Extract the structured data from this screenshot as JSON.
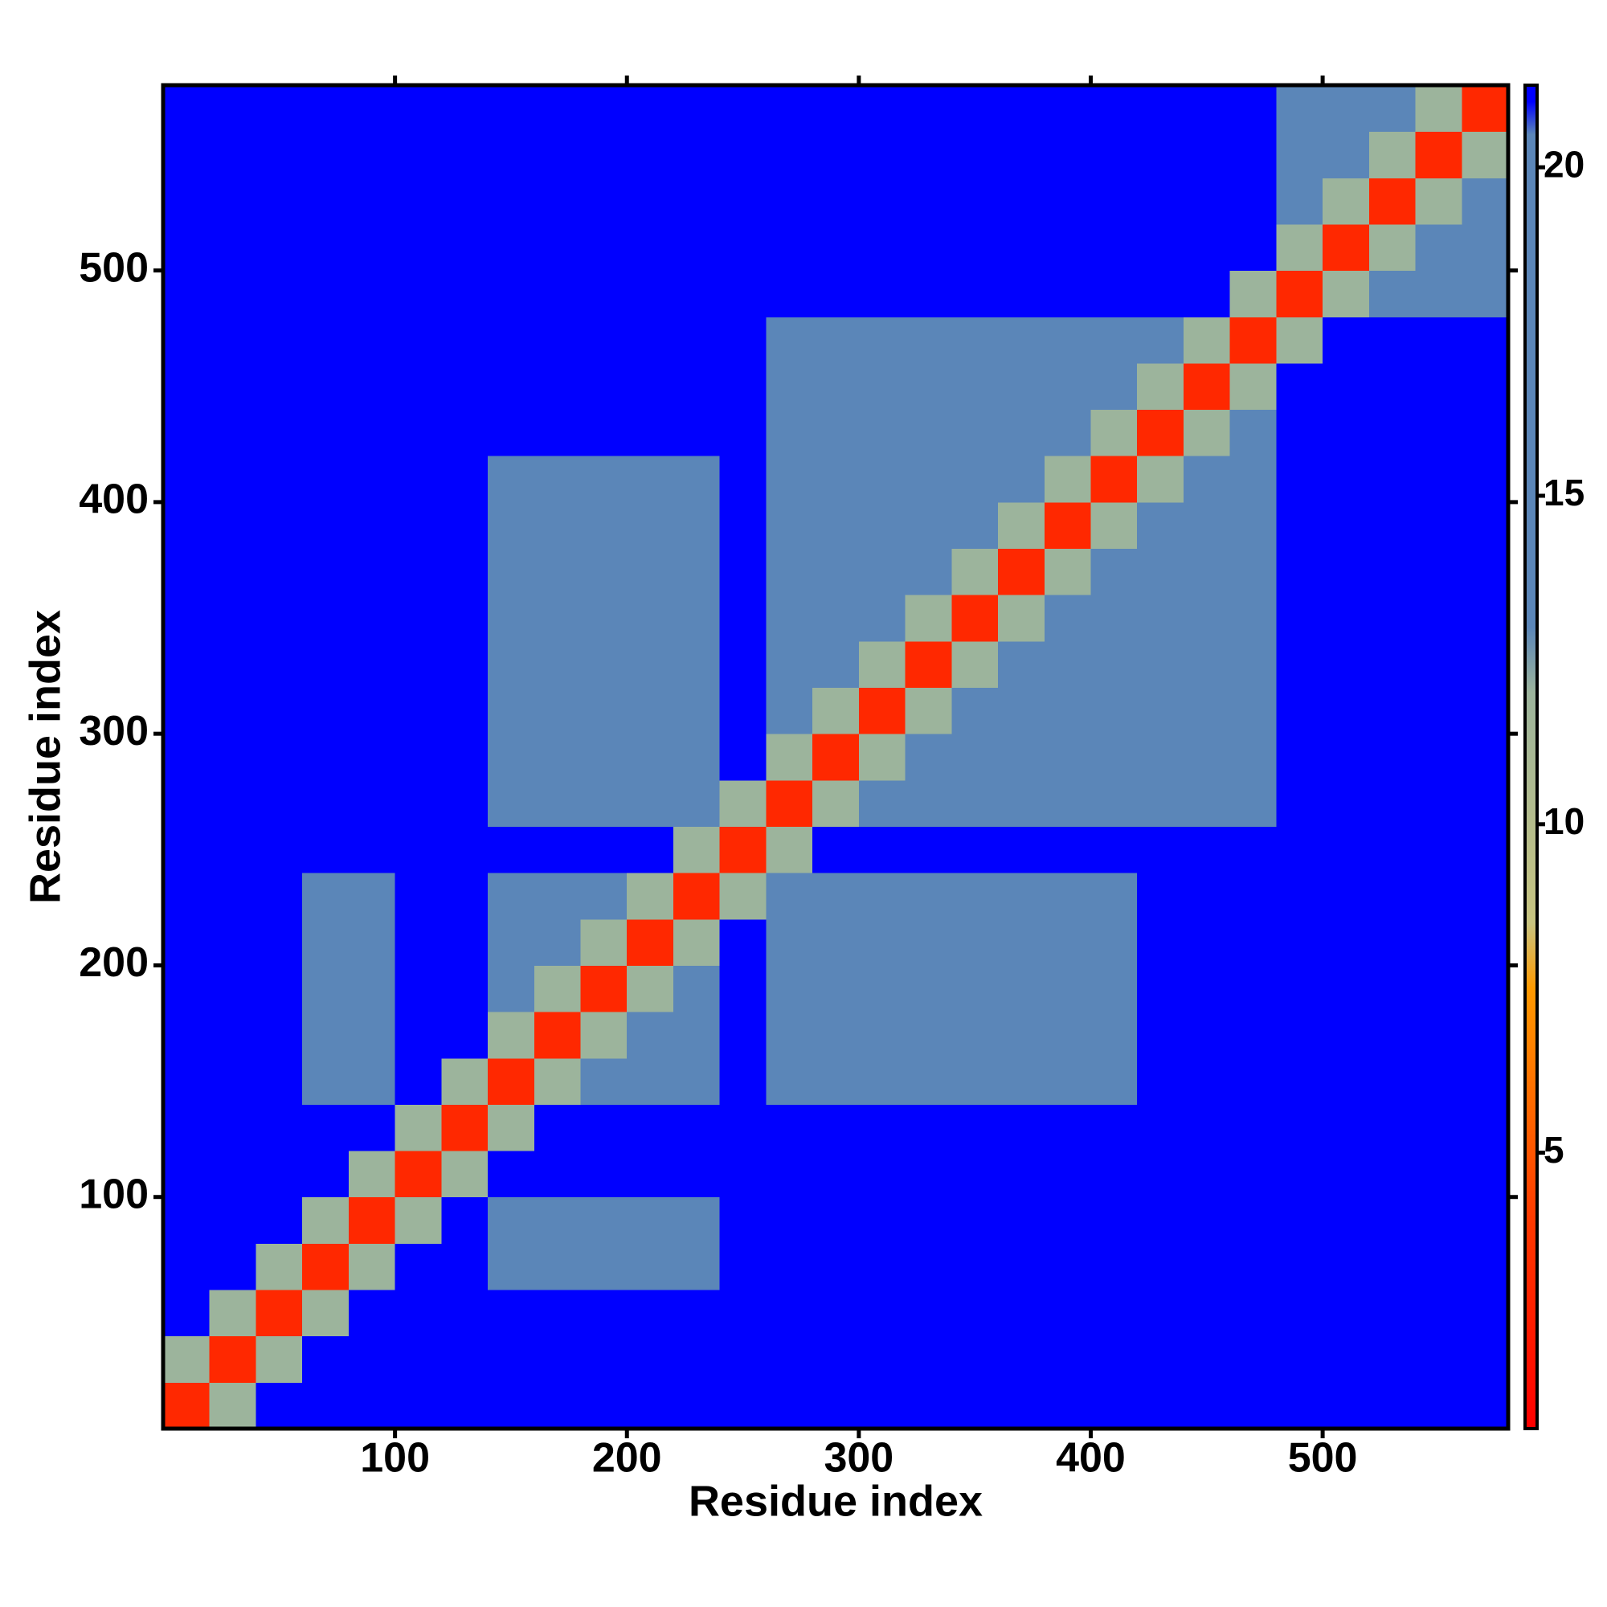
{
  "chart_data": {
    "type": "heatmap",
    "x_label": "Residue index",
    "y_label": "Residue index",
    "x_bins": [
      0,
      20,
      40,
      60,
      80,
      100,
      120,
      140,
      160,
      180,
      200,
      220,
      240,
      260,
      280,
      300,
      320,
      340,
      360,
      380,
      400,
      420,
      440,
      460,
      480,
      500,
      520,
      540,
      560,
      580
    ],
    "y_bins": [
      0,
      20,
      40,
      60,
      80,
      100,
      120,
      140,
      160,
      180,
      200,
      220,
      240,
      260,
      280,
      300,
      320,
      340,
      360,
      380,
      400,
      420,
      440,
      460,
      480,
      500,
      520,
      540,
      560,
      580
    ],
    "xlim": [
      0,
      580
    ],
    "ylim": [
      0,
      580
    ],
    "xticks": [
      100,
      200,
      300,
      400,
      500
    ],
    "yticks": [
      100,
      200,
      300,
      400,
      500
    ],
    "colorbar_lim": [
      0.8,
      21.25
    ],
    "colorbar_ticks": [
      5,
      10,
      15,
      20
    ],
    "colorscale": [
      {
        "value": 0.8,
        "color": "#ff0000"
      },
      {
        "value": 4,
        "color": "#ff3a00"
      },
      {
        "value": 7.5,
        "color": "#ff9a00"
      },
      {
        "value": 8.5,
        "color": "#c8c480"
      },
      {
        "value": 12,
        "color": "#9cb49c"
      },
      {
        "value": 13,
        "color": "#5b86b8"
      },
      {
        "value": 20.5,
        "color": "#5b86b8"
      },
      {
        "value": 21,
        "color": "#0000ff"
      },
      {
        "value": 21.25,
        "color": "#0000ff"
      }
    ],
    "values": [
      [
        3,
        12,
        21,
        21,
        21,
        21,
        21,
        21,
        21,
        21,
        21,
        21,
        21,
        21,
        21,
        21,
        21,
        21,
        21,
        21,
        21,
        21,
        21,
        21,
        21,
        21,
        21,
        21,
        21
      ],
      [
        12,
        3,
        12,
        21,
        21,
        21,
        21,
        21,
        21,
        21,
        21,
        21,
        21,
        21,
        21,
        21,
        21,
        21,
        21,
        21,
        21,
        21,
        21,
        21,
        21,
        21,
        21,
        21,
        21
      ],
      [
        21,
        12,
        3,
        12,
        21,
        21,
        21,
        21,
        21,
        21,
        21,
        21,
        21,
        21,
        21,
        21,
        21,
        21,
        21,
        21,
        21,
        21,
        21,
        21,
        21,
        21,
        21,
        21,
        21
      ],
      [
        21,
        21,
        12,
        3,
        12,
        21,
        21,
        17,
        17,
        17,
        17,
        17,
        21,
        21,
        21,
        21,
        21,
        21,
        21,
        21,
        21,
        21,
        21,
        21,
        21,
        21,
        21,
        21,
        21
      ],
      [
        21,
        21,
        21,
        12,
        3,
        12,
        21,
        17,
        17,
        17,
        17,
        17,
        21,
        21,
        21,
        21,
        21,
        21,
        21,
        21,
        21,
        21,
        21,
        21,
        21,
        21,
        21,
        21,
        21
      ],
      [
        21,
        21,
        21,
        21,
        12,
        3,
        12,
        21,
        21,
        21,
        21,
        21,
        21,
        21,
        21,
        21,
        21,
        21,
        21,
        21,
        21,
        21,
        21,
        21,
        21,
        21,
        21,
        21,
        21
      ],
      [
        21,
        21,
        21,
        21,
        21,
        12,
        3,
        12,
        21,
        21,
        21,
        21,
        21,
        21,
        21,
        21,
        21,
        21,
        21,
        21,
        21,
        21,
        21,
        21,
        21,
        21,
        21,
        21,
        21
      ],
      [
        21,
        21,
        21,
        17,
        17,
        21,
        12,
        3,
        12,
        15,
        15,
        15,
        21,
        15,
        15,
        15,
        15,
        15,
        15,
        15,
        15,
        21,
        21,
        21,
        21,
        21,
        21,
        21,
        21
      ],
      [
        21,
        21,
        21,
        17,
        17,
        21,
        21,
        12,
        3,
        12,
        15,
        15,
        21,
        15,
        15,
        15,
        15,
        15,
        15,
        15,
        15,
        21,
        21,
        21,
        21,
        21,
        21,
        21,
        21
      ],
      [
        21,
        21,
        21,
        17,
        17,
        21,
        21,
        15,
        12,
        3,
        12,
        15,
        21,
        15,
        15,
        15,
        15,
        15,
        15,
        15,
        15,
        21,
        21,
        21,
        21,
        21,
        21,
        21,
        21
      ],
      [
        21,
        21,
        21,
        17,
        17,
        21,
        21,
        15,
        15,
        12,
        3,
        12,
        21,
        15,
        15,
        15,
        15,
        15,
        15,
        15,
        15,
        21,
        21,
        21,
        21,
        21,
        21,
        21,
        21
      ],
      [
        21,
        21,
        21,
        17,
        17,
        21,
        21,
        15,
        15,
        15,
        12,
        3,
        12,
        15,
        15,
        15,
        15,
        15,
        15,
        15,
        15,
        21,
        21,
        21,
        21,
        21,
        21,
        21,
        21
      ],
      [
        21,
        21,
        21,
        21,
        21,
        21,
        21,
        21,
        21,
        21,
        21,
        12,
        3,
        12,
        21,
        21,
        21,
        21,
        21,
        21,
        21,
        21,
        21,
        21,
        21,
        21,
        21,
        21,
        21
      ],
      [
        21,
        21,
        21,
        21,
        21,
        21,
        21,
        15,
        15,
        15,
        15,
        15,
        12,
        3,
        12,
        15,
        15,
        15,
        15,
        15,
        15,
        15,
        15,
        15,
        21,
        21,
        21,
        21,
        21
      ],
      [
        21,
        21,
        21,
        21,
        21,
        21,
        21,
        15,
        15,
        15,
        15,
        15,
        21,
        12,
        3,
        12,
        15,
        15,
        15,
        15,
        15,
        15,
        15,
        15,
        21,
        21,
        21,
        21,
        21
      ],
      [
        21,
        21,
        21,
        21,
        21,
        21,
        21,
        15,
        15,
        15,
        15,
        15,
        21,
        15,
        12,
        3,
        12,
        15,
        15,
        15,
        15,
        15,
        15,
        15,
        21,
        21,
        21,
        21,
        21
      ],
      [
        21,
        21,
        21,
        21,
        21,
        21,
        21,
        15,
        15,
        15,
        15,
        15,
        21,
        15,
        15,
        12,
        3,
        12,
        15,
        15,
        15,
        15,
        15,
        15,
        21,
        21,
        21,
        21,
        21
      ],
      [
        21,
        21,
        21,
        21,
        21,
        21,
        21,
        15,
        15,
        15,
        15,
        15,
        21,
        15,
        15,
        15,
        12,
        3,
        12,
        15,
        15,
        15,
        15,
        15,
        21,
        21,
        21,
        21,
        21
      ],
      [
        21,
        21,
        21,
        21,
        21,
        21,
        21,
        15,
        15,
        15,
        15,
        15,
        21,
        15,
        15,
        15,
        15,
        12,
        3,
        12,
        15,
        15,
        15,
        15,
        21,
        21,
        21,
        21,
        21
      ],
      [
        21,
        21,
        21,
        21,
        21,
        21,
        21,
        15,
        15,
        15,
        15,
        15,
        21,
        15,
        15,
        15,
        15,
        15,
        12,
        3,
        12,
        15,
        15,
        15,
        21,
        21,
        21,
        21,
        21
      ],
      [
        21,
        21,
        21,
        21,
        21,
        21,
        21,
        15,
        15,
        15,
        15,
        15,
        21,
        15,
        15,
        15,
        15,
        15,
        15,
        12,
        3,
        12,
        15,
        15,
        21,
        21,
        21,
        21,
        21
      ],
      [
        21,
        21,
        21,
        21,
        21,
        21,
        21,
        21,
        21,
        21,
        21,
        21,
        21,
        15,
        15,
        15,
        15,
        15,
        15,
        15,
        12,
        3,
        12,
        15,
        21,
        21,
        21,
        21,
        21
      ],
      [
        21,
        21,
        21,
        21,
        21,
        21,
        21,
        21,
        21,
        21,
        21,
        21,
        21,
        15,
        15,
        15,
        15,
        15,
        15,
        15,
        15,
        12,
        3,
        12,
        21,
        21,
        21,
        21,
        21
      ],
      [
        21,
        21,
        21,
        21,
        21,
        21,
        21,
        21,
        21,
        21,
        21,
        21,
        21,
        15,
        15,
        15,
        15,
        15,
        15,
        15,
        15,
        15,
        12,
        3,
        12,
        21,
        21,
        21,
        21
      ],
      [
        21,
        21,
        21,
        21,
        21,
        21,
        21,
        21,
        21,
        21,
        21,
        21,
        21,
        21,
        21,
        21,
        21,
        21,
        21,
        21,
        21,
        21,
        21,
        12,
        3,
        12,
        15,
        15,
        15
      ],
      [
        21,
        21,
        21,
        21,
        21,
        21,
        21,
        21,
        21,
        21,
        21,
        21,
        21,
        21,
        21,
        21,
        21,
        21,
        21,
        21,
        21,
        21,
        21,
        21,
        12,
        3,
        12,
        15,
        15
      ],
      [
        21,
        21,
        21,
        21,
        21,
        21,
        21,
        21,
        21,
        21,
        21,
        21,
        21,
        21,
        21,
        21,
        21,
        21,
        21,
        21,
        21,
        21,
        21,
        21,
        15,
        12,
        3,
        12,
        15
      ],
      [
        21,
        21,
        21,
        21,
        21,
        21,
        21,
        21,
        21,
        21,
        21,
        21,
        21,
        21,
        21,
        21,
        21,
        21,
        21,
        21,
        21,
        21,
        21,
        21,
        15,
        15,
        12,
        3,
        12
      ],
      [
        21,
        21,
        21,
        21,
        21,
        21,
        21,
        21,
        21,
        21,
        21,
        21,
        21,
        21,
        21,
        21,
        21,
        21,
        21,
        21,
        21,
        21,
        21,
        21,
        15,
        15,
        15,
        12,
        3
      ]
    ]
  }
}
